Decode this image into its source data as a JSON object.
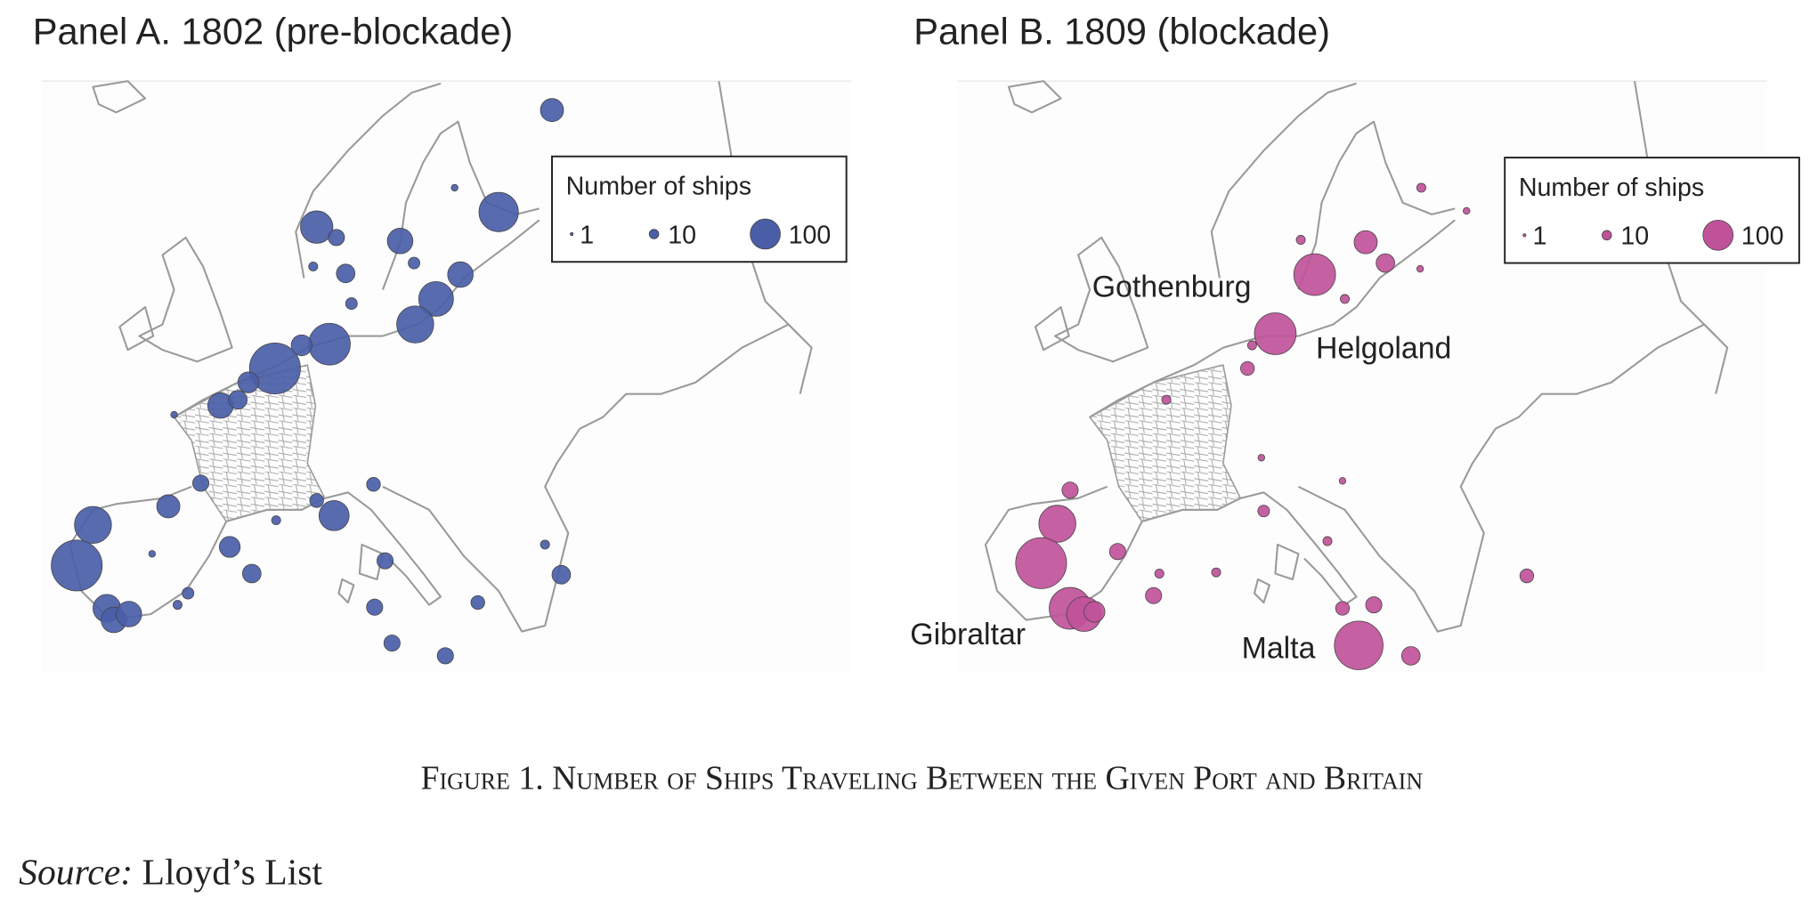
{
  "panels": [
    {
      "title": "Panel A. 1802 (pre-blockade)",
      "color": "#4a5ea8",
      "legend": {
        "title": "Number of ships",
        "sizes": [
          1,
          10,
          100
        ]
      },
      "ships": [
        59,
        171,
        72,
        133,
        151,
        72,
        116,
        29,
        38,
        15,
        192,
        48,
        286,
        48,
        72,
        38,
        59,
        29,
        48,
        38,
        151,
        286,
        85,
        72,
        72,
        15,
        100,
        21,
        21,
        29,
        29,
        29,
        29,
        21,
        38,
        9,
        15,
        5,
        9,
        5,
        9,
        5,
        9
      ],
      "labels": []
    },
    {
      "title": "Panel B. 1809 (blockade)",
      "color": "#c0529a",
      "legend": {
        "title": "Number of ships",
        "sizes": [
          1,
          10,
          100
        ]
      },
      "ships": [
        192,
        192,
        59,
        38,
        9,
        9,
        9,
        21,
        9,
        151,
        286,
        192,
        133,
        48,
        29,
        29,
        29,
        9,
        9,
        261,
        38,
        29,
        21,
        21,
        15,
        9,
        5,
        5,
        5,
        5,
        9
      ],
      "labels": [
        "Gothenburg",
        "Helgoland",
        "Gibraltar",
        "Malta"
      ]
    }
  ],
  "caption": "Figure 1. Number of Ships Traveling Between the Given Port and Britain",
  "source": {
    "label": "Source:",
    "text": "Lloyd’s List"
  }
}
